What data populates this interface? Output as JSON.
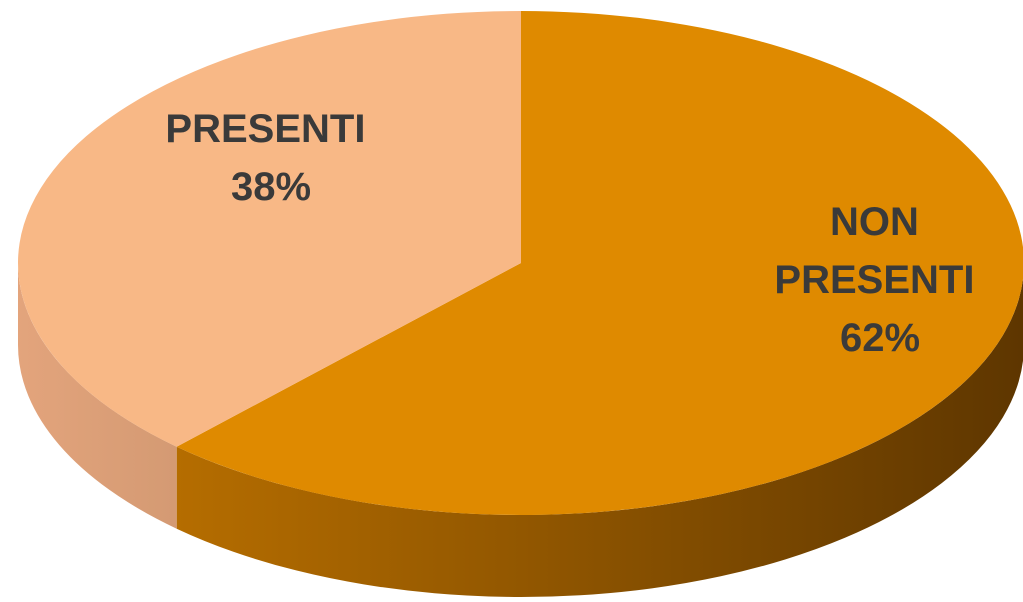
{
  "chart_data": {
    "type": "pie",
    "title": "",
    "three_d": true,
    "labels": [
      "NON PRESENTI",
      "PRESENTI"
    ],
    "values": [
      62,
      38
    ],
    "units": "%",
    "data_labels": [
      {
        "lines": [
          "NON",
          "PRESENTI",
          "62%"
        ]
      },
      {
        "lines": [
          "PRESENTI",
          "38%"
        ]
      }
    ],
    "colors": [
      "#df8a00",
      "#f8b886"
    ],
    "legend": "none"
  }
}
